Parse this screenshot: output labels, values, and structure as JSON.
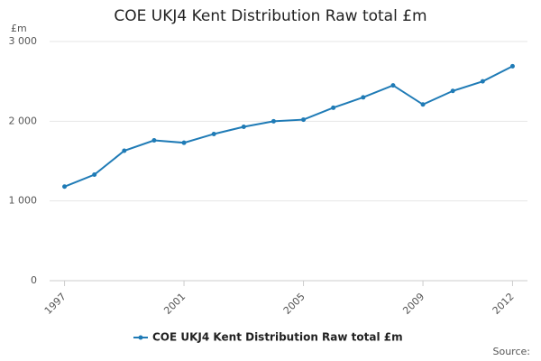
{
  "chart_data": {
    "type": "line",
    "title": "COE UKJ4 Kent Distribution Raw total £m",
    "y_unit": "£m",
    "source": "Source:",
    "x": [
      1997,
      1998,
      1999,
      2000,
      2001,
      2002,
      2003,
      2004,
      2005,
      2006,
      2007,
      2008,
      2009,
      2010,
      2011,
      2012
    ],
    "series": [
      {
        "name": "COE UKJ4 Kent Distribution Raw total £m",
        "color": "#1f7bb6",
        "values": [
          1180,
          1330,
          1630,
          1760,
          1730,
          1840,
          1930,
          2000,
          2020,
          2170,
          2300,
          2450,
          2210,
          2380,
          2500,
          2690
        ]
      }
    ],
    "xlim": [
      1996.5,
      2012.5
    ],
    "xticks": [
      1997,
      2001,
      2005,
      2009,
      2012
    ],
    "ylim": [
      0,
      3000
    ],
    "yticks": [
      0,
      {
        "value": 1000,
        "label": "1 000"
      },
      {
        "value": 2000,
        "label": "2 000"
      },
      {
        "value": 3000,
        "label": "3 000"
      }
    ],
    "grid": true
  }
}
